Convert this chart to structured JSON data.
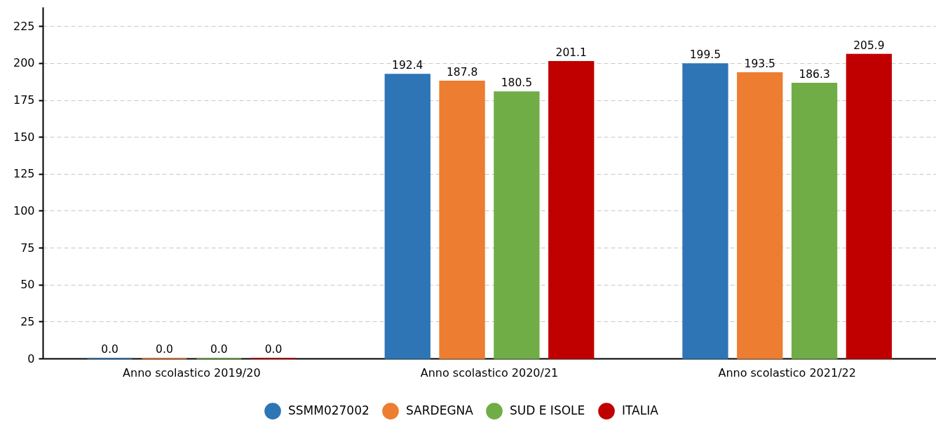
{
  "chart_data": {
    "type": "bar",
    "categories": [
      "Anno scolastico 2019/20",
      "Anno scolastico 2020/21",
      "Anno scolastico 2021/22"
    ],
    "series": [
      {
        "name": "SSMM027002",
        "color": "#2e75b6",
        "values": [
          0,
          192.4,
          199.5
        ],
        "value_labels": [
          "0.0",
          "192.4",
          "199.5"
        ]
      },
      {
        "name": "SARDEGNA",
        "color": "#ed7d31",
        "values": [
          0,
          187.8,
          193.5
        ],
        "value_labels": [
          "0.0",
          "187.8",
          "193.5"
        ]
      },
      {
        "name": "SUD E ISOLE",
        "color": "#70ad47",
        "values": [
          0,
          180.5,
          186.3
        ],
        "value_labels": [
          "0.0",
          "180.5",
          "186.3"
        ]
      },
      {
        "name": "ITALIA",
        "color": "#c00000",
        "values": [
          0,
          201.1,
          205.9
        ],
        "value_labels": [
          "0.0",
          "201.1",
          "205.9"
        ]
      }
    ],
    "ylim": [
      0,
      238
    ],
    "yticks": [
      0,
      25,
      50,
      75,
      100,
      125,
      150,
      175,
      200,
      225
    ],
    "grid": "y",
    "legend": "bottom"
  }
}
